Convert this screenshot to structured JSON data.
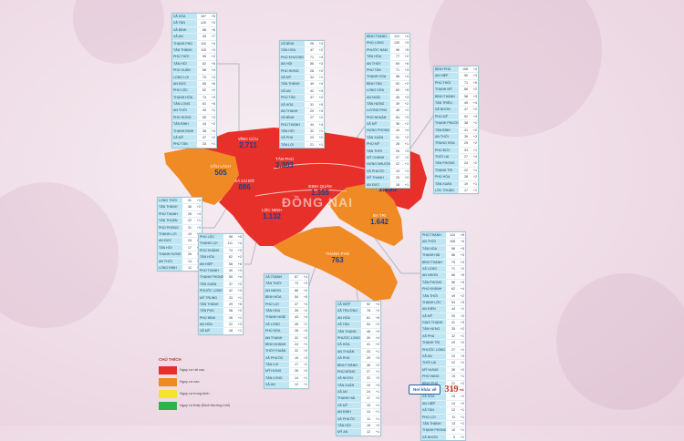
{
  "map_title": "ĐỒNG NAI",
  "districts": [
    {
      "id": "vinh-cuu",
      "name": "VĨNH CỬU",
      "count": "2.711",
      "level": "red"
    },
    {
      "id": "tan-phu",
      "name": "TÂN PHÚ",
      "count": "2.303",
      "level": "red"
    },
    {
      "id": "dinh-quan",
      "name": "ĐỊNH QUÁN",
      "count": "1.355",
      "level": "red"
    },
    {
      "id": "bien-hoa",
      "name": "BIÊN HÒA",
      "count": "1.233",
      "level": "red"
    },
    {
      "id": "cau-lach",
      "name": "CẦU LÁCH",
      "count": "505",
      "level": "orange"
    },
    {
      "id": "xa-cu-do",
      "name": "XÃ CÙ ĐÔ",
      "count": "886",
      "level": "red"
    },
    {
      "id": "loc-ninh",
      "name": "LỘC NINH",
      "count": "1.132",
      "level": "red"
    },
    {
      "id": "ba-tri",
      "name": "BA TRI",
      "count": "1.642",
      "level": "orange"
    },
    {
      "id": "thanh-phu",
      "name": "THẠNH PHÚ",
      "count": "763",
      "level": "orange"
    }
  ],
  "legend": {
    "title": "CHÚ THÍCH",
    "items": [
      {
        "label": "Nguy cơ rất cao",
        "color": "#e8302a"
      },
      {
        "label": "Nguy cơ cao",
        "color": "#f08a24"
      },
      {
        "label": "Nguy cơ trung bình",
        "color": "#f2e52c"
      },
      {
        "label": "Nguy cơ thấp (Bình thường mới)",
        "color": "#2fb24a"
      }
    ]
  },
  "other_places": {
    "label": "Nơi khác về",
    "count": "319",
    "unit": "ca"
  },
  "colors": {
    "red": "#e8302a",
    "orange": "#f08a24",
    "table_head": "#bfe6f2",
    "line": "#9aa7b5"
  },
  "tables": [
    {
      "id": "t1",
      "rows": [
        [
          "XÃ HÒA",
          "107",
          "+5"
        ],
        [
          "XÃ TÂN",
          "120",
          "+3"
        ],
        [
          "XÃ BÌNH",
          "88",
          "+6"
        ],
        [
          "XÃ AN",
          "99",
          "+7"
        ],
        [
          "THẠNH PHÚ",
          "110",
          "+4"
        ],
        [
          "TÂN THÀNH",
          "115",
          "+3"
        ],
        [
          "PHÚ THỚI",
          "95",
          "+2"
        ],
        [
          "TÂN HỘI",
          "62",
          "+5"
        ],
        [
          "PHÚ XUÂN",
          "58",
          "+4"
        ],
        [
          "LONG LỢI",
          "70",
          "+3"
        ],
        [
          "AN ĐỨC",
          "65",
          "+6"
        ],
        [
          "PHÚ LỘC",
          "52",
          "+2"
        ],
        [
          "THẠNH HÒA",
          "74",
          "+3"
        ],
        [
          "TÂN LONG",
          "61",
          "+5"
        ],
        [
          "AN THỚI",
          "49",
          "+1"
        ],
        [
          "PHÚ HƯNG",
          "55",
          "+3"
        ],
        [
          "TÂN BÌNH",
          "44",
          "+2"
        ],
        [
          "THẠNH ĐỊNH",
          "38",
          "+4"
        ],
        [
          "XÃ MỸ",
          "47",
          "+2"
        ],
        [
          "PHÚ TÂN",
          "33",
          "+1"
        ]
      ]
    },
    {
      "id": "t2",
      "rows": [
        [
          "XÃ BÌNH",
          "26",
          "+3"
        ],
        [
          "TÂN HÒA",
          "47",
          "+2"
        ],
        [
          "PHÚ KHƯƠNG",
          "71",
          "+4"
        ],
        [
          "AN HỘI",
          "56",
          "+3"
        ],
        [
          "PHÚ HƯNG",
          "28",
          "+2"
        ],
        [
          "XÃ MỸ",
          "34",
          "+1"
        ],
        [
          "TÂN THÀNH",
          "49",
          "+4"
        ],
        [
          "XÃ AN",
          "42",
          "+3"
        ],
        [
          "PHÚ TÂN",
          "37",
          "+2"
        ],
        [
          "XÃ HÒA",
          "31",
          "+5"
        ],
        [
          "AN THẠNH",
          "29",
          "+3"
        ],
        [
          "XÃ BÌNH",
          "27",
          "+2"
        ],
        [
          "PHÚ THÀNH",
          "44",
          "+3"
        ],
        [
          "TÂN HỘI",
          "32",
          "+1"
        ],
        [
          "XÃ PHÚ",
          "23",
          "+2"
        ],
        [
          "TÂN LỢI",
          "21",
          "+1"
        ]
      ]
    },
    {
      "id": "t3",
      "rows": [
        [
          "BÌNH THẠNH",
          "112",
          "+4"
        ],
        [
          "PHÚ LONG",
          "130",
          "+3"
        ],
        [
          "PHƯỚC NAM",
          "96",
          "+5"
        ],
        [
          "TÂN HÒA",
          "77",
          "+2"
        ],
        [
          "AN THỦY",
          "69",
          "+6"
        ],
        [
          "PHÚ TÂN",
          "71",
          "+3"
        ],
        [
          "THẠNH HÒA",
          "58",
          "+4"
        ],
        [
          "BÌNH TÂN",
          "52",
          "+2"
        ],
        [
          "LONG HÒA",
          "60",
          "+5"
        ],
        [
          "AN NGÃI",
          "45",
          "+3"
        ],
        [
          "TÂN HƯNG",
          "39",
          "+2"
        ],
        [
          "LƯƠNG PHÚ",
          "48",
          "+1"
        ],
        [
          "PHÚ NHUẬN",
          "54",
          "+3"
        ],
        [
          "XÃ MỸ",
          "36",
          "+2"
        ],
        [
          "HƯNG PHONG",
          "44",
          "+4"
        ],
        [
          "TÂN XUÂN",
          "31",
          "+2"
        ],
        [
          "PHÚ MỸ",
          "28",
          "+1"
        ],
        [
          "TÂN THỚI",
          "26",
          "+3"
        ],
        [
          "MỸ CHÁNH",
          "37",
          "+2"
        ],
        [
          "HƯNG NHƯỢNG",
          "22",
          "+1"
        ],
        [
          "XÃ PHƯỚC",
          "19",
          "+1"
        ],
        [
          "MỸ THẠNH",
          "25",
          "+2"
        ],
        [
          "AN ĐỨC",
          "18",
          "+1"
        ]
      ]
    },
    {
      "id": "t4",
      "rows": [
        [
          "BÌNH PHÚ",
          "108",
          "+4"
        ],
        [
          "AN HIỆP",
          "90",
          "+3"
        ],
        [
          "PHÚ THỚI",
          "71",
          "+5"
        ],
        [
          "THẠNH MỸ",
          "66",
          "+2"
        ],
        [
          "BÌNH THÀNH",
          "58",
          "+3"
        ],
        [
          "TÂN TRIỀU",
          "49",
          "+4"
        ],
        [
          "XÃ NHƠN",
          "47",
          "+2"
        ],
        [
          "PHÚ MỸ",
          "52",
          "+3"
        ],
        [
          "THẠNH PHƯỚC",
          "38",
          "+1"
        ],
        [
          "TÂN BÌNH",
          "41",
          "+2"
        ],
        [
          "AN THỚI",
          "35",
          "+3"
        ],
        [
          "TRUNG HÒA",
          "29",
          "+2"
        ],
        [
          "PHÚ ĐỨC",
          "33",
          "+1"
        ],
        [
          "THỚI LAI",
          "27",
          "+4"
        ],
        [
          "TÂN PHONG",
          "24",
          "+2"
        ],
        [
          "THẠNH TRỊ",
          "22",
          "+1"
        ],
        [
          "PHÚ HÒA",
          "28",
          "+2"
        ],
        [
          "TÂN XUÂN",
          "19",
          "+1"
        ],
        [
          "LỘC THUẬN",
          "17",
          "+1"
        ]
      ]
    },
    {
      "id": "t5",
      "rows": [
        [
          "LONG THỚI",
          "41",
          "+3"
        ],
        [
          "TÂN THÀNH",
          "36",
          "+2"
        ],
        [
          "PHÚ THẠNH",
          "28",
          "+4"
        ],
        [
          "TÂN THUẬN",
          "22",
          "+1"
        ],
        [
          "PHÚ PHONG",
          "31",
          "+3"
        ],
        [
          "THẠNH LỢI",
          "19",
          "+2"
        ],
        [
          "AN ĐỨC",
          "24",
          "+1"
        ],
        [
          "TÂN HỘI",
          "17",
          "+2"
        ],
        [
          "THẠNH HƯNG",
          "26",
          "+3"
        ],
        [
          "AN THỚI",
          "14",
          "+1"
        ],
        [
          "LONG ĐỊNH",
          "12",
          "+2"
        ]
      ]
    },
    {
      "id": "t6",
      "rows": [
        [
          "PHÚ LỘC",
          "98",
          "+5"
        ],
        [
          "THẠNH LỢI",
          "111",
          "+4"
        ],
        [
          "PHÚ KHÁNH",
          "74",
          "+3"
        ],
        [
          "TÂN HÒA",
          "62",
          "+2"
        ],
        [
          "AN HIỆP",
          "58",
          "+6"
        ],
        [
          "PHÚ THẠNH",
          "49",
          "+3"
        ],
        [
          "THẠNH PHONG",
          "55",
          "+4"
        ],
        [
          "TÂN XUÂN",
          "37",
          "+2"
        ],
        [
          "PHƯỚC LONG",
          "42",
          "+3"
        ],
        [
          "MỸ TRUNG",
          "33",
          "+1"
        ],
        [
          "TÂN THÀNH",
          "29",
          "+5"
        ],
        [
          "TÂN PHÚ",
          "38",
          "+2"
        ],
        [
          "PHÚ BÌNH",
          "26",
          "+1"
        ],
        [
          "AN HÒA",
          "22",
          "+3"
        ],
        [
          "XÃ MỸ",
          "18",
          "+1"
        ]
      ]
    },
    {
      "id": "t7",
      "rows": [
        [
          "XÃ THẠNH",
          "87",
          "+4"
        ],
        [
          "TÂN THỦY",
          "73",
          "+3"
        ],
        [
          "AN NHƠN",
          "66",
          "+2"
        ],
        [
          "BÌNH HÒA",
          "54",
          "+5"
        ],
        [
          "PHÚ LỢI",
          "47",
          "+3"
        ],
        [
          "TÂN HÒA",
          "39",
          "+2"
        ],
        [
          "THẠNH NGÃI",
          "43",
          "+4"
        ],
        [
          "XÃ LONG",
          "35",
          "+1"
        ],
        [
          "PHÚ HÒA",
          "28",
          "+3"
        ],
        [
          "AN THẠNH",
          "31",
          "+2"
        ],
        [
          "BÌNH KHÁNH",
          "24",
          "+1"
        ],
        [
          "THỚI THUẬN",
          "22",
          "+2"
        ],
        [
          "XÃ PHƯỚC",
          "19",
          "+3"
        ],
        [
          "TÂN LỢI",
          "17",
          "+1"
        ],
        [
          "MỸ HƯNG",
          "26",
          "+2"
        ],
        [
          "TÂN LONG",
          "14",
          "+1"
        ],
        [
          "XÃ AN",
          "12",
          "+1"
        ]
      ]
    },
    {
      "id": "t8",
      "rows": [
        [
          "XÃ HIỆP",
          "92",
          "+4"
        ],
        [
          "XÃ TRƯỜNG",
          "78",
          "+3"
        ],
        [
          "AN HÒA",
          "61",
          "+5"
        ],
        [
          "XÃ TÂN",
          "54",
          "+2"
        ],
        [
          "TÂN THẠNH",
          "48",
          "+3"
        ],
        [
          "PHƯỚC LONG",
          "39",
          "+4"
        ],
        [
          "XÃ HÒA",
          "41",
          "+2"
        ],
        [
          "AN THUẬN",
          "33",
          "+1"
        ],
        [
          "XÃ PHÚ",
          "29",
          "+3"
        ],
        [
          "BÌNH THÀNH",
          "36",
          "+2"
        ],
        [
          "PHÚ ĐÔNG",
          "27",
          "+1"
        ],
        [
          "XÃ NHƠN",
          "22",
          "+2"
        ],
        [
          "TÂN XUÂN",
          "19",
          "+3"
        ],
        [
          "XÃ AN",
          "24",
          "+1"
        ],
        [
          "THẠNH HẢI",
          "17",
          "+2"
        ],
        [
          "XÃ MỸ",
          "15",
          "+1"
        ],
        [
          "AN ĐỊNH",
          "13",
          "+1"
        ],
        [
          "XÃ PHƯỚC",
          "11",
          "+1"
        ],
        [
          "TÂN HỘI",
          "16",
          "+2"
        ],
        [
          "MỸ AN",
          "12",
          "+1"
        ]
      ]
    },
    {
      "id": "t9",
      "rows": [
        [
          "PHÚ THẠNH",
          "124",
          "+6"
        ],
        [
          "AN THỚI",
          "108",
          "+4"
        ],
        [
          "TÂN HÒA",
          "96",
          "+5"
        ],
        [
          "THẠNH HẢI",
          "88",
          "+3"
        ],
        [
          "BÌNH THẠNH",
          "79",
          "+4"
        ],
        [
          "XÃ LONG",
          "71",
          "+2"
        ],
        [
          "AN NHƠN",
          "66",
          "+5"
        ],
        [
          "TÂN PHONG",
          "58",
          "+3"
        ],
        [
          "PHÚ KHÁNH",
          "62",
          "+4"
        ],
        [
          "TÂN THỚI",
          "49",
          "+2"
        ],
        [
          "THẠNH LỘC",
          "53",
          "+3"
        ],
        [
          "AN ĐIỀN",
          "44",
          "+1"
        ],
        [
          "XÃ MỸ",
          "39",
          "+2"
        ],
        [
          "GIAO THẠNH",
          "41",
          "+3"
        ],
        [
          "TÂN HƯNG",
          "35",
          "+2"
        ],
        [
          "XÃ PHÚ",
          "32",
          "+1"
        ],
        [
          "THẠNH TRỊ",
          "29",
          "+2"
        ],
        [
          "PHƯỚC LONG",
          "27",
          "+1"
        ],
        [
          "XÃ AN",
          "24",
          "+3"
        ],
        [
          "THỚI LAI",
          "22",
          "+1"
        ],
        [
          "MỸ HƯNG",
          "26",
          "+2"
        ],
        [
          "PHÚ VANG",
          "19",
          "+1"
        ],
        [
          "BÌNH PHÚ",
          "21",
          "+2"
        ],
        [
          "TÂN XUÂN",
          "17",
          "+1"
        ],
        [
          "XÃ HÒA",
          "15",
          "+1"
        ],
        [
          "AN HIỆP",
          "14",
          "+2"
        ],
        [
          "XÃ TÂN",
          "12",
          "+1"
        ],
        [
          "PHÚ LỢI",
          "11",
          "+1"
        ],
        [
          "TÂN THÀNH",
          "13",
          "+1"
        ],
        [
          "THẠNH PHONG",
          "10",
          "+1"
        ],
        [
          "XÃ NHƠN",
          "9",
          "+1"
        ]
      ]
    }
  ]
}
